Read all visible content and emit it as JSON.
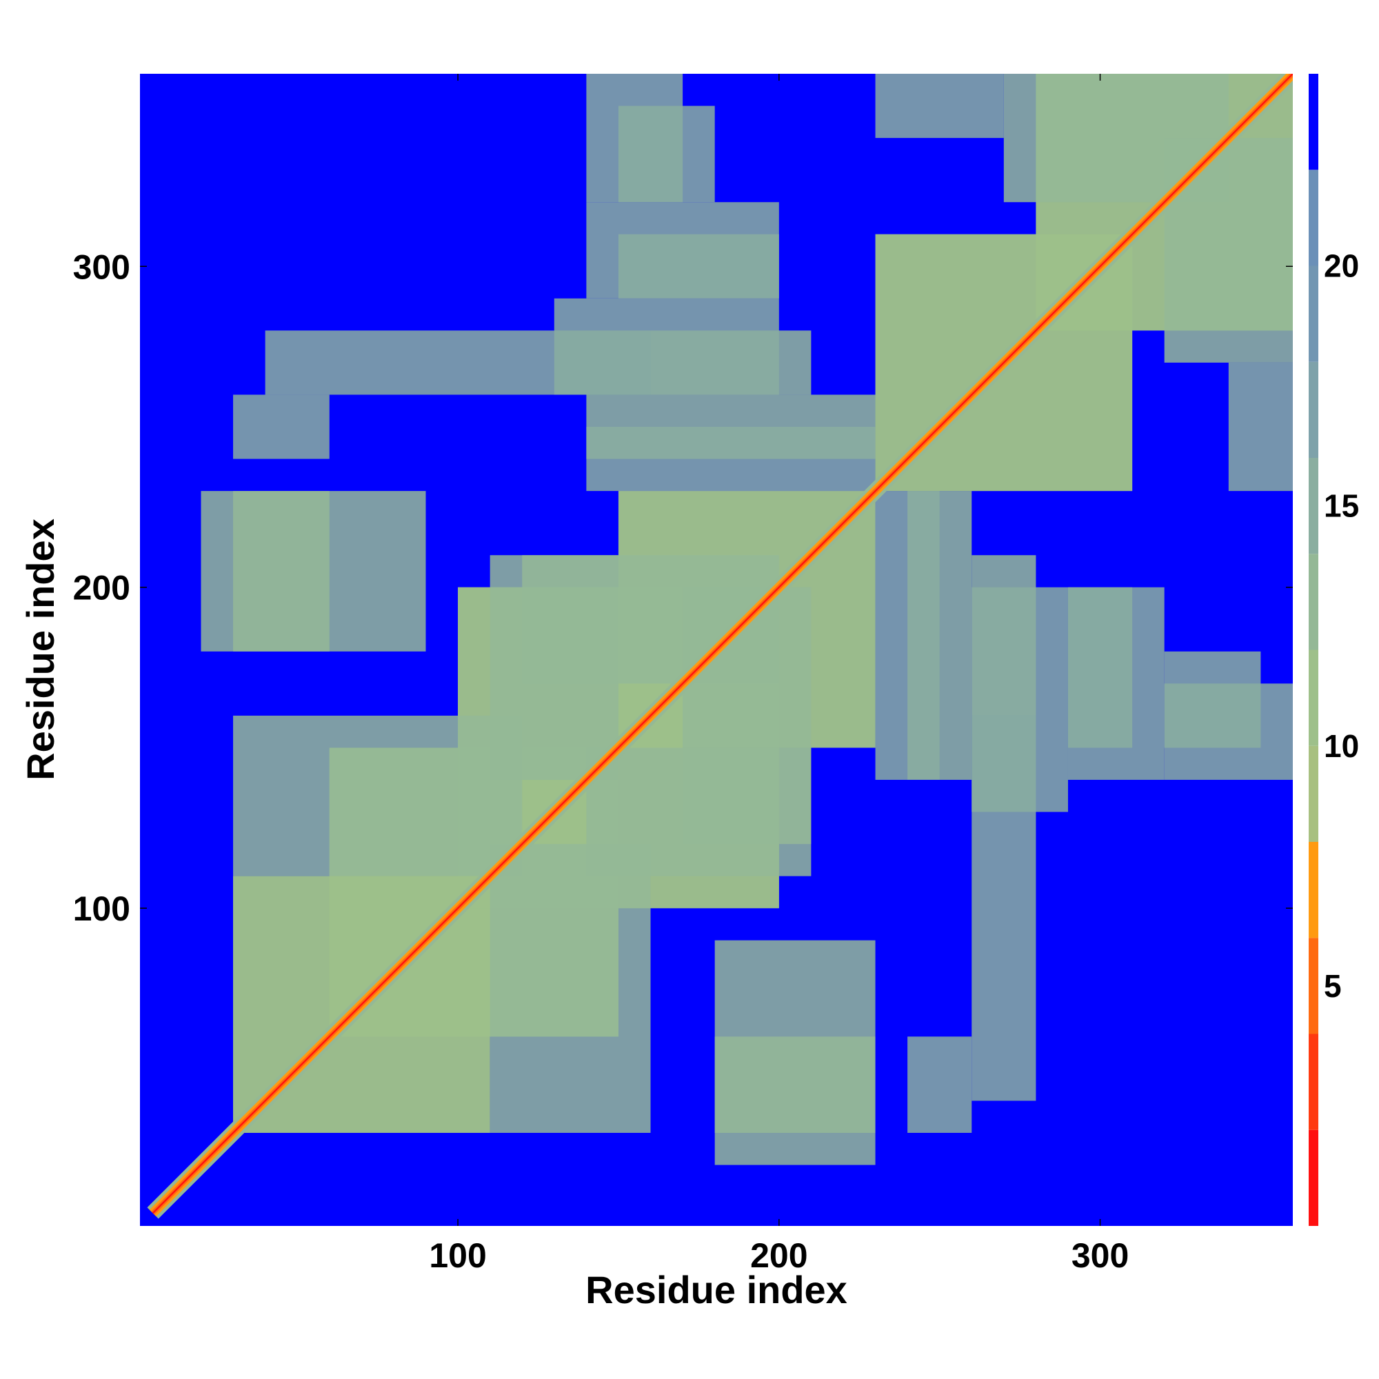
{
  "chart_data": {
    "type": "heatmap",
    "title": "",
    "xlabel": "Residue index",
    "ylabel": "Residue index",
    "xlim": [
      1,
      360
    ],
    "ylim": [
      1,
      360
    ],
    "x_ticks": [
      100,
      200,
      300
    ],
    "y_ticks": [
      100,
      200,
      300
    ],
    "colorbar": {
      "range": [
        0,
        24
      ],
      "ticks": [
        5,
        10,
        15,
        20
      ],
      "levels": [
        {
          "from": 0,
          "to": 2,
          "color": "#ff1010"
        },
        {
          "from": 2,
          "to": 4,
          "color": "#ff3a10"
        },
        {
          "from": 4,
          "to": 6,
          "color": "#ff6a10"
        },
        {
          "from": 6,
          "to": 8,
          "color": "#ff9a10"
        },
        {
          "from": 8,
          "to": 10,
          "color": "#a8c080"
        },
        {
          "from": 10,
          "to": 12,
          "color": "#9ec08a"
        },
        {
          "from": 12,
          "to": 14,
          "color": "#94b896"
        },
        {
          "from": 14,
          "to": 16,
          "color": "#8aaea0"
        },
        {
          "from": 16,
          "to": 18,
          "color": "#7ea2aa"
        },
        {
          "from": 18,
          "to": 20,
          "color": "#7296b2"
        },
        {
          "from": 20,
          "to": 22,
          "color": "#6b90b8"
        },
        {
          "from": 22,
          "to": 24,
          "color": "#0000ff"
        }
      ]
    },
    "background_color": "#0000ff",
    "contact_blocks": [
      {
        "x": [
          5,
          360
        ],
        "y": [
          5,
          360
        ],
        "type": "diagonal",
        "value": 1
      },
      {
        "x": [
          30,
          110
        ],
        "y": [
          30,
          110
        ],
        "value": 11
      },
      {
        "x": [
          60,
          150
        ],
        "y": [
          60,
          150
        ],
        "value": 11
      },
      {
        "x": [
          100,
          200
        ],
        "y": [
          100,
          200
        ],
        "value": 11
      },
      {
        "x": [
          150,
          230
        ],
        "y": [
          150,
          230
        ],
        "value": 11
      },
      {
        "x": [
          230,
          310
        ],
        "y": [
          230,
          310
        ],
        "value": 11
      },
      {
        "x": [
          280,
          360
        ],
        "y": [
          280,
          360
        ],
        "value": 11
      },
      {
        "x": [
          30,
          120
        ],
        "y": [
          110,
          160
        ],
        "value": 13
      },
      {
        "x": [
          30,
          90
        ],
        "y": [
          180,
          230
        ],
        "value": 12
      },
      {
        "x": [
          120,
          200
        ],
        "y": [
          170,
          210
        ],
        "value": 13
      },
      {
        "x": [
          140,
          210
        ],
        "y": [
          110,
          150
        ],
        "value": 12
      },
      {
        "x": [
          180,
          230
        ],
        "y": [
          20,
          60
        ],
        "value": 12
      },
      {
        "x": [
          40,
          160
        ],
        "y": [
          260,
          280
        ],
        "value": 14
      },
      {
        "x": [
          30,
          60
        ],
        "y": [
          240,
          260
        ],
        "value": 15
      },
      {
        "x": [
          140,
          230
        ],
        "y": [
          240,
          260
        ],
        "value": 13
      },
      {
        "x": [
          160,
          210
        ],
        "y": [
          260,
          280
        ],
        "value": 13
      },
      {
        "x": [
          150,
          200
        ],
        "y": [
          290,
          310
        ],
        "value": 14
      },
      {
        "x": [
          140,
          170
        ],
        "y": [
          320,
          360
        ],
        "value": 14
      },
      {
        "x": [
          230,
          250
        ],
        "y": [
          140,
          230
        ],
        "value": 14
      },
      {
        "x": [
          260,
          290
        ],
        "y": [
          130,
          200
        ],
        "value": 14
      },
      {
        "x": [
          290,
          320
        ],
        "y": [
          140,
          200
        ],
        "value": 14
      },
      {
        "x": [
          320,
          350
        ],
        "y": [
          150,
          180
        ],
        "value": 15
      },
      {
        "x": [
          270,
          340
        ],
        "y": [
          320,
          360
        ],
        "value": 13
      },
      {
        "x": [
          340,
          360
        ],
        "y": [
          230,
          270
        ],
        "value": 14
      }
    ]
  }
}
